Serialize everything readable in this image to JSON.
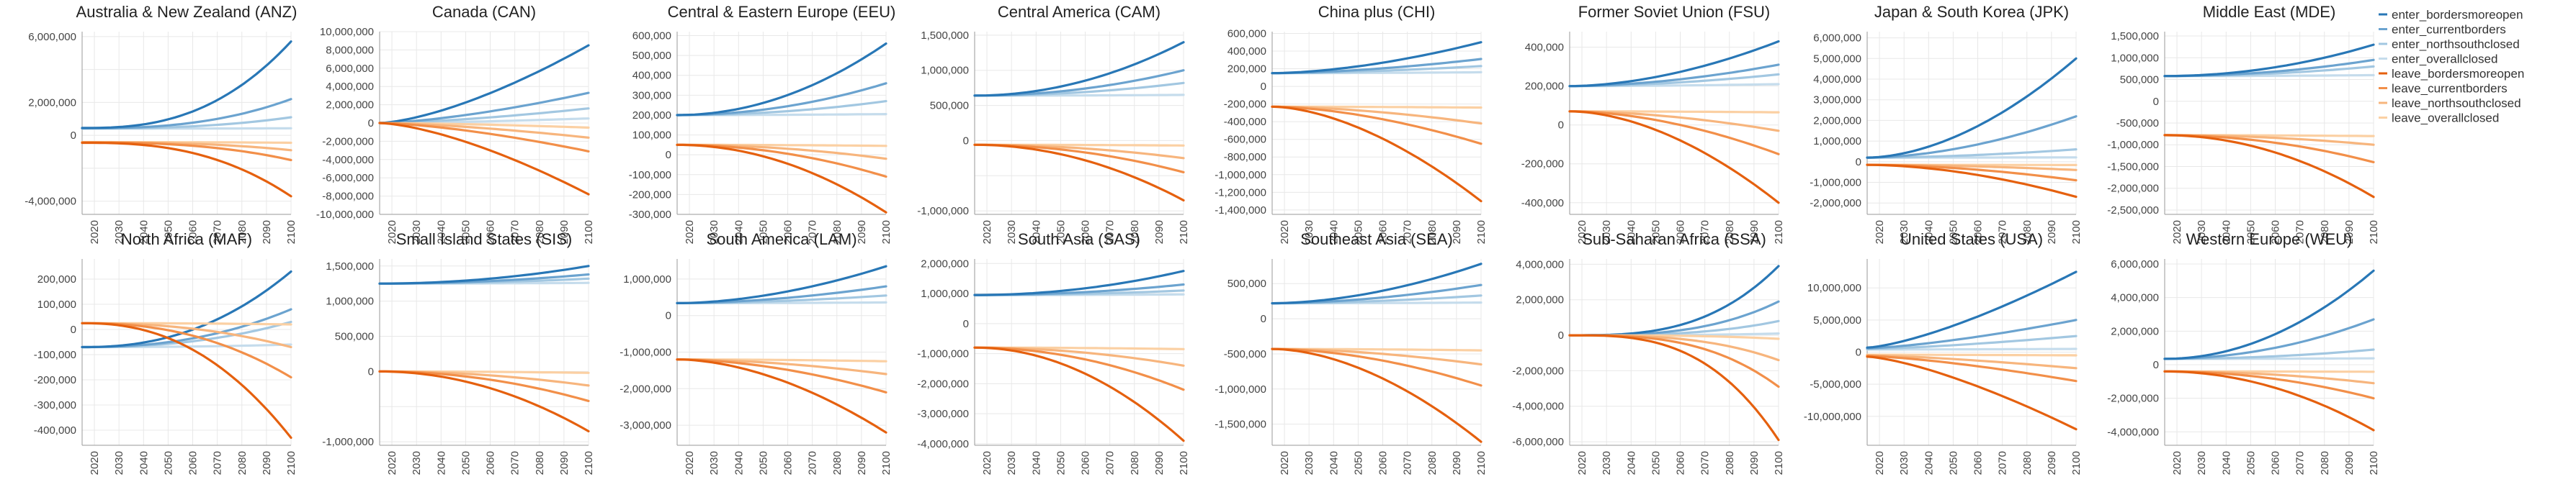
{
  "colors": {
    "enter_bordersmoreopen": "#2877b6",
    "enter_currentborders": "#6ba3cf",
    "enter_northsouthclosed": "#a2c7e1",
    "enter_overallclosed": "#c5dcec",
    "leave_bordersmoreopen": "#e5600e",
    "leave_currentborders": "#f28f49",
    "leave_northsouthclosed": "#f7b57d",
    "leave_overallclosed": "#fbd0a3",
    "grid": "#e8e8e8",
    "axis": "#9a9a9a"
  },
  "legend": [
    {
      "key": "enter_bordersmoreopen",
      "label": "enter_bordersmoreopen"
    },
    {
      "key": "enter_currentborders",
      "label": "enter_currentborders"
    },
    {
      "key": "enter_northsouthclosed",
      "label": "enter_northsouthclosed"
    },
    {
      "key": "enter_overallclosed",
      "label": "enter_overallclosed"
    },
    {
      "key": "leave_bordersmoreopen",
      "label": "leave_bordersmoreopen"
    },
    {
      "key": "leave_currentborders",
      "label": "leave_currentborders"
    },
    {
      "key": "leave_northsouthclosed",
      "label": "leave_northsouthclosed"
    },
    {
      "key": "leave_overallclosed",
      "label": "leave_overallclosed"
    }
  ],
  "chart_data": {
    "type": "line",
    "x_ticks": [
      "2020",
      "2030",
      "2040",
      "2050",
      "2060",
      "2070",
      "2080",
      "2090",
      "2100"
    ],
    "xlim": [
      2015,
      2100
    ],
    "series_keys": [
      "enter_bordersmoreopen",
      "enter_currentborders",
      "enter_northsouthclosed",
      "enter_overallclosed",
      "leave_bordersmoreopen",
      "leave_currentborders",
      "leave_northsouthclosed",
      "leave_overallclosed"
    ],
    "panels": [
      {
        "title": "Australia & New Zealand (ANZ)",
        "ylim": [
          -4800000,
          6300000
        ],
        "y_ticks": [
          {
            "v": -4000000,
            "t": "-4,000,000"
          },
          {
            "v": -2000000,
            "t": ""
          },
          {
            "v": 0,
            "t": "0"
          },
          {
            "v": 2000000,
            "t": "2,000,000"
          },
          {
            "v": 4000000,
            "t": ""
          },
          {
            "v": 6000000,
            "t": "6,000,000"
          }
        ],
        "start": [
          450000,
          430000,
          420000,
          410000,
          -450000,
          -430000,
          -420000,
          -410000
        ],
        "end": [
          5700000,
          2200000,
          1100000,
          430000,
          -3700000,
          -1500000,
          -900000,
          -450000
        ]
      },
      {
        "title": "Canada (CAN)",
        "ylim": [
          -10000000,
          10000000
        ],
        "y_ticks": [
          {
            "v": -10000000,
            "t": "-10,000,000"
          },
          {
            "v": -8000000,
            "t": "-8,000,000"
          },
          {
            "v": -6000000,
            "t": "-6,000,000"
          },
          {
            "v": -4000000,
            "t": "-4,000,000"
          },
          {
            "v": -2000000,
            "t": "-2,000,000"
          },
          {
            "v": 0,
            "t": "0"
          },
          {
            "v": 2000000,
            "t": "2,000,000"
          },
          {
            "v": 4000000,
            "t": "4,000,000"
          },
          {
            "v": 6000000,
            "t": "6,000,000"
          },
          {
            "v": 8000000,
            "t": "8,000,000"
          },
          {
            "v": 10000000,
            "t": "10,000,000"
          }
        ],
        "start": [
          0,
          0,
          0,
          0,
          0,
          0,
          0,
          0
        ],
        "end": [
          8500000,
          3300000,
          1600000,
          500000,
          -7800000,
          -3100000,
          -1600000,
          -500000
        ],
        "exp": 1.5
      },
      {
        "title": "Central & Eastern Europe (EEU)",
        "ylim": [
          -300000,
          620000
        ],
        "y_ticks": [
          {
            "v": -300000,
            "t": "-300,000"
          },
          {
            "v": -200000,
            "t": "-200,000"
          },
          {
            "v": -100000,
            "t": "-100,000"
          },
          {
            "v": 0,
            "t": "0"
          },
          {
            "v": 100000,
            "t": "100,000"
          },
          {
            "v": 200000,
            "t": "200,000"
          },
          {
            "v": 300000,
            "t": "300,000"
          },
          {
            "v": 400000,
            "t": "400,000"
          },
          {
            "v": 500000,
            "t": "500,000"
          },
          {
            "v": 600000,
            "t": "600,000"
          }
        ],
        "start": [
          200000,
          200000,
          200000,
          200000,
          50000,
          50000,
          50000,
          50000
        ],
        "end": [
          560000,
          360000,
          270000,
          205000,
          -290000,
          -110000,
          -20000,
          45000
        ],
        "exp": 2
      },
      {
        "title": "Central America (CAM)",
        "ylim": [
          -1050000,
          1550000
        ],
        "y_ticks": [
          {
            "v": -1000000,
            "t": "-1,000,000"
          },
          {
            "v": -500000,
            "t": ""
          },
          {
            "v": 0,
            "t": "0"
          },
          {
            "v": 500000,
            "t": "500,000"
          },
          {
            "v": 1000000,
            "t": "1,000,000"
          },
          {
            "v": 1500000,
            "t": "1,500,000"
          }
        ],
        "start": [
          640000,
          640000,
          640000,
          640000,
          -60000,
          -60000,
          -60000,
          -60000
        ],
        "end": [
          1400000,
          1000000,
          820000,
          650000,
          -850000,
          -450000,
          -250000,
          -70000
        ],
        "exp": 2
      },
      {
        "title": "China plus (CHI)",
        "ylim": [
          -1450000,
          620000
        ],
        "y_ticks": [
          {
            "v": -1400000,
            "t": "-1,400,000"
          },
          {
            "v": -1200000,
            "t": "-1,200,000"
          },
          {
            "v": -1000000,
            "t": "-1,000,000"
          },
          {
            "v": -800000,
            "t": "-800,000"
          },
          {
            "v": -600000,
            "t": "-600,000"
          },
          {
            "v": -400000,
            "t": "-400,000"
          },
          {
            "v": -200000,
            "t": "-200,000"
          },
          {
            "v": 0,
            "t": "0"
          },
          {
            "v": 200000,
            "t": "200,000"
          },
          {
            "v": 400000,
            "t": "400,000"
          },
          {
            "v": 600000,
            "t": "600,000"
          }
        ],
        "start": [
          150000,
          150000,
          150000,
          150000,
          -230000,
          -230000,
          -230000,
          -230000
        ],
        "end": [
          500000,
          310000,
          230000,
          160000,
          -1300000,
          -650000,
          -420000,
          -240000
        ],
        "exp": 1.7
      },
      {
        "title": "Former Soviet Union (FSU)",
        "ylim": [
          -460000,
          480000
        ],
        "y_ticks": [
          {
            "v": -400000,
            "t": "-400,000"
          },
          {
            "v": -200000,
            "t": "-200,000"
          },
          {
            "v": 0,
            "t": "0"
          },
          {
            "v": 200000,
            "t": "200,000"
          },
          {
            "v": 400000,
            "t": "400,000"
          }
        ],
        "start": [
          200000,
          200000,
          200000,
          200000,
          70000,
          70000,
          70000,
          70000
        ],
        "end": [
          430000,
          310000,
          260000,
          210000,
          -400000,
          -150000,
          -30000,
          65000
        ],
        "exp": 1.8
      },
      {
        "title": "Japan & South Korea (JPK)",
        "ylim": [
          -2550000,
          6300000
        ],
        "y_ticks": [
          {
            "v": -2000000,
            "t": "-2,000,000"
          },
          {
            "v": -1000000,
            "t": "-1,000,000"
          },
          {
            "v": 0,
            "t": "0"
          },
          {
            "v": 1000000,
            "t": "1,000,000"
          },
          {
            "v": 2000000,
            "t": "2,000,000"
          },
          {
            "v": 3000000,
            "t": "3,000,000"
          },
          {
            "v": 4000000,
            "t": "4,000,000"
          },
          {
            "v": 5000000,
            "t": "5,000,000"
          },
          {
            "v": 6000000,
            "t": "6,000,000"
          }
        ],
        "start": [
          200000,
          200000,
          200000,
          200000,
          -150000,
          -150000,
          -150000,
          -150000
        ],
        "end": [
          5000000,
          2200000,
          600000,
          210000,
          -1700000,
          -900000,
          -400000,
          -160000
        ],
        "exp": 1.8
      },
      {
        "title": "Middle East (MDE)",
        "ylim": [
          -2600000,
          1600000
        ],
        "y_ticks": [
          {
            "v": -2500000,
            "t": "-2,500,000"
          },
          {
            "v": -2000000,
            "t": "-2,000,000"
          },
          {
            "v": -1500000,
            "t": "-1,500,000"
          },
          {
            "v": -1000000,
            "t": "-1,000,000"
          },
          {
            "v": -500000,
            "t": "-500,000"
          },
          {
            "v": 0,
            "t": "0"
          },
          {
            "v": 500000,
            "t": "500,000"
          },
          {
            "v": 1000000,
            "t": "1,000,000"
          },
          {
            "v": 1500000,
            "t": "1,500,000"
          }
        ],
        "start": [
          580000,
          580000,
          580000,
          580000,
          -780000,
          -780000,
          -780000,
          -780000
        ],
        "end": [
          1300000,
          950000,
          800000,
          600000,
          -2200000,
          -1400000,
          -1000000,
          -800000
        ],
        "exp": 2
      },
      {
        "title": "North Africa (MAF)",
        "ylim": [
          -460000,
          280000
        ],
        "y_ticks": [
          {
            "v": -400000,
            "t": "-400,000"
          },
          {
            "v": -300000,
            "t": "-300,000"
          },
          {
            "v": -200000,
            "t": "-200,000"
          },
          {
            "v": -100000,
            "t": "-100,000"
          },
          {
            "v": 0,
            "t": "0"
          },
          {
            "v": 100000,
            "t": "100,000"
          },
          {
            "v": 200000,
            "t": "200,000"
          }
        ],
        "start": [
          -70000,
          -70000,
          -70000,
          -70000,
          25000,
          25000,
          25000,
          25000
        ],
        "end": [
          230000,
          80000,
          30000,
          -60000,
          -430000,
          -190000,
          -70000,
          20000
        ],
        "exp": 2.3
      },
      {
        "title": "Small Island States (SIS)",
        "ylim": [
          -1050000,
          1600000
        ],
        "y_ticks": [
          {
            "v": -1000000,
            "t": "-1,000,000"
          },
          {
            "v": -500000,
            "t": ""
          },
          {
            "v": 0,
            "t": "0"
          },
          {
            "v": 500000,
            "t": "500,000"
          },
          {
            "v": 1000000,
            "t": "1,000,000"
          },
          {
            "v": 1500000,
            "t": "1,500,000"
          }
        ],
        "start": [
          1250000,
          1250000,
          1250000,
          1250000,
          0,
          0,
          0,
          0
        ],
        "end": [
          1500000,
          1380000,
          1320000,
          1260000,
          -850000,
          -420000,
          -200000,
          -20000
        ],
        "exp": 2
      },
      {
        "title": "South America (LAM)",
        "ylim": [
          -3550000,
          1550000
        ],
        "y_ticks": [
          {
            "v": -3000000,
            "t": "-3,000,000"
          },
          {
            "v": -2000000,
            "t": "-2,000,000"
          },
          {
            "v": -1000000,
            "t": "-1,000,000"
          },
          {
            "v": 0,
            "t": "0"
          },
          {
            "v": 1000000,
            "t": "1,000,000"
          }
        ],
        "start": [
          340000,
          340000,
          340000,
          340000,
          -1200000,
          -1200000,
          -1200000,
          -1200000
        ],
        "end": [
          1350000,
          800000,
          550000,
          360000,
          -3200000,
          -2100000,
          -1600000,
          -1250000
        ],
        "exp": 1.8
      },
      {
        "title": "South Asia (SAS)",
        "ylim": [
          -4050000,
          2150000
        ],
        "y_ticks": [
          {
            "v": -4000000,
            "t": "-4,000,000"
          },
          {
            "v": -3000000,
            "t": "-3,000,000"
          },
          {
            "v": -2000000,
            "t": "-2,000,000"
          },
          {
            "v": -1000000,
            "t": "-1,000,000"
          },
          {
            "v": 0,
            "t": "0"
          },
          {
            "v": 1000000,
            "t": "1,000,000"
          },
          {
            "v": 2000000,
            "t": "2,000,000"
          }
        ],
        "start": [
          950000,
          950000,
          950000,
          950000,
          -800000,
          -800000,
          -800000,
          -800000
        ],
        "end": [
          1750000,
          1300000,
          1100000,
          970000,
          -3900000,
          -2200000,
          -1400000,
          -850000
        ],
        "exp": 2
      },
      {
        "title": "Southeast Asia (SEA)",
        "ylim": [
          -1800000,
          850000
        ],
        "y_ticks": [
          {
            "v": -1500000,
            "t": "-1,500,000"
          },
          {
            "v": -1000000,
            "t": "-1,000,000"
          },
          {
            "v": -500000,
            "t": "-500,000"
          },
          {
            "v": 0,
            "t": "0"
          },
          {
            "v": 500000,
            "t": "500,000"
          }
        ],
        "start": [
          220000,
          220000,
          220000,
          220000,
          -430000,
          -430000,
          -430000,
          -430000
        ],
        "end": [
          780000,
          480000,
          330000,
          230000,
          -1750000,
          -950000,
          -650000,
          -450000
        ],
        "exp": 1.8
      },
      {
        "title": "Sub-Saharan Africa (SSA)",
        "ylim": [
          -6200000,
          4300000
        ],
        "y_ticks": [
          {
            "v": -6000000,
            "t": "-6,000,000"
          },
          {
            "v": -4000000,
            "t": "-4,000,000"
          },
          {
            "v": -2000000,
            "t": "-2,000,000"
          },
          {
            "v": 0,
            "t": "0"
          },
          {
            "v": 2000000,
            "t": "2,000,000"
          },
          {
            "v": 4000000,
            "t": "4,000,000"
          }
        ],
        "start": [
          0,
          0,
          0,
          0,
          0,
          0,
          0,
          0
        ],
        "end": [
          3900000,
          1900000,
          800000,
          100000,
          -5900000,
          -2900000,
          -1400000,
          -200000
        ],
        "exp": 3
      },
      {
        "title": "United States (USA)",
        "ylim": [
          -14500000,
          14500000
        ],
        "y_ticks": [
          {
            "v": -10000000,
            "t": "-10,000,000"
          },
          {
            "v": -5000000,
            "t": "-5,000,000"
          },
          {
            "v": 0,
            "t": "0"
          },
          {
            "v": 5000000,
            "t": "5,000,000"
          },
          {
            "v": 10000000,
            "t": "10,000,000"
          }
        ],
        "start": [
          700000,
          600000,
          500000,
          400000,
          -700000,
          -600000,
          -500000,
          -400000
        ],
        "end": [
          12500000,
          5000000,
          2500000,
          500000,
          -12000000,
          -4500000,
          -2500000,
          -500000
        ],
        "exp": 1.4
      },
      {
        "title": "Western Europe (WEU)",
        "ylim": [
          -4800000,
          6300000
        ],
        "y_ticks": [
          {
            "v": -4000000,
            "t": "-4,000,000"
          },
          {
            "v": -2000000,
            "t": "-2,000,000"
          },
          {
            "v": 0,
            "t": "0"
          },
          {
            "v": 2000000,
            "t": "2,000,000"
          },
          {
            "v": 4000000,
            "t": "4,000,000"
          },
          {
            "v": 6000000,
            "t": "6,000,000"
          }
        ],
        "start": [
          350000,
          350000,
          350000,
          350000,
          -400000,
          -400000,
          -400000,
          -400000
        ],
        "end": [
          5600000,
          2700000,
          900000,
          380000,
          -3900000,
          -2000000,
          -1100000,
          -420000
        ],
        "exp": 2
      }
    ]
  }
}
